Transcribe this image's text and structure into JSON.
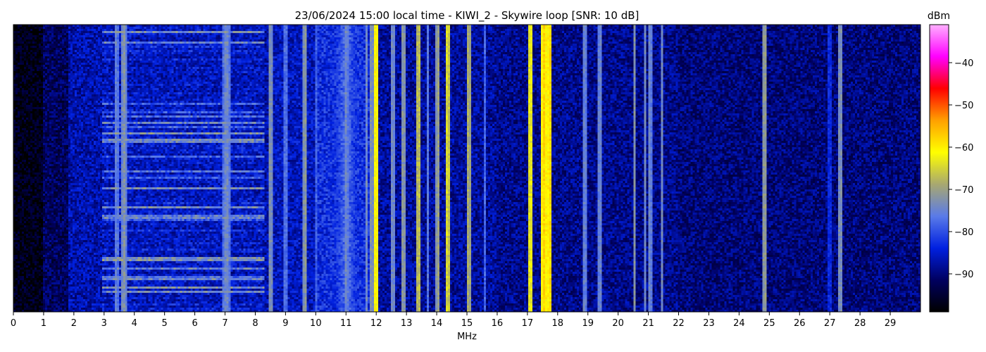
{
  "chart_data": {
    "type": "heatmap",
    "title": "23/06/2024 15:00 local time - KIWI_2 - Skywire loop [SNR: 10 dB]",
    "xlabel": "MHz",
    "ylabel": "",
    "xlim": [
      0,
      30
    ],
    "x_ticks": [
      0,
      1,
      2,
      3,
      4,
      5,
      6,
      7,
      8,
      9,
      10,
      11,
      12,
      13,
      14,
      15,
      16,
      17,
      18,
      19,
      20,
      21,
      22,
      23,
      24,
      25,
      26,
      27,
      28,
      29
    ],
    "colorbar": {
      "label": "dBm",
      "range": [
        -99,
        -31
      ],
      "ticks": [
        -40,
        -50,
        -60,
        -70,
        -80,
        -90
      ],
      "colors": [
        "#000000",
        "#000060",
        "#0020e0",
        "#5a7be8",
        "#a8a870",
        "#ffff00",
        "#ffa000",
        "#ff0000",
        "#ff00ff",
        "#ffb0ff"
      ]
    },
    "noise_floor_dbm": -93,
    "band_regions": [
      {
        "start": 0.0,
        "end": 1.0,
        "level": -97
      },
      {
        "start": 1.0,
        "end": 1.8,
        "level": -92
      },
      {
        "start": 1.8,
        "end": 8.5,
        "level": -87
      },
      {
        "start": 8.5,
        "end": 10.0,
        "level": -86
      },
      {
        "start": 10.0,
        "end": 11.9,
        "level": -83
      },
      {
        "start": 11.9,
        "end": 16.0,
        "level": -88
      },
      {
        "start": 16.0,
        "end": 22.0,
        "level": -89
      },
      {
        "start": 22.0,
        "end": 30.0,
        "level": -90
      }
    ],
    "broadcast_bands": [
      {
        "start": 2.9,
        "end": 8.3,
        "level": -72
      }
    ],
    "diffuse_hump": {
      "center": 11.0,
      "width": 0.35,
      "level": -78
    },
    "signals": [
      {
        "freq": 3.4,
        "width": 0.05,
        "level": -75
      },
      {
        "freq": 3.65,
        "width": 0.08,
        "level": -72
      },
      {
        "freq": 7.05,
        "width": 0.12,
        "level": -73
      },
      {
        "freq": 8.5,
        "width": 0.03,
        "level": -72
      },
      {
        "freq": 9.0,
        "width": 0.02,
        "level": -76
      },
      {
        "freq": 9.65,
        "width": 0.03,
        "level": -71
      },
      {
        "freq": 10.0,
        "width": 0.02,
        "level": -78
      },
      {
        "freq": 11.0,
        "width": 0.03,
        "level": -74
      },
      {
        "freq": 11.7,
        "width": 0.02,
        "level": -74
      },
      {
        "freq": 11.85,
        "width": 0.02,
        "level": -72
      },
      {
        "freq": 12.0,
        "width": 0.03,
        "level": -60
      },
      {
        "freq": 12.55,
        "width": 0.02,
        "level": -73
      },
      {
        "freq": 12.9,
        "width": 0.03,
        "level": -71
      },
      {
        "freq": 13.4,
        "width": 0.03,
        "level": -66
      },
      {
        "freq": 13.7,
        "width": 0.02,
        "level": -76
      },
      {
        "freq": 14.05,
        "width": 0.03,
        "level": -70
      },
      {
        "freq": 14.35,
        "width": 0.03,
        "level": -64
      },
      {
        "freq": 15.05,
        "width": 0.03,
        "level": -68
      },
      {
        "freq": 15.6,
        "width": 0.02,
        "level": -78
      },
      {
        "freq": 17.1,
        "width": 0.03,
        "level": -62
      },
      {
        "freq": 17.55,
        "width": 0.05,
        "level": -58
      },
      {
        "freq": 17.65,
        "width": 0.04,
        "level": -60
      },
      {
        "freq": 17.75,
        "width": 0.04,
        "level": -58
      },
      {
        "freq": 18.9,
        "width": 0.02,
        "level": -74
      },
      {
        "freq": 19.4,
        "width": 0.02,
        "level": -74
      },
      {
        "freq": 20.55,
        "width": 0.02,
        "level": -72
      },
      {
        "freq": 20.9,
        "width": 0.02,
        "level": -74
      },
      {
        "freq": 21.05,
        "width": 0.02,
        "level": -74
      },
      {
        "freq": 21.45,
        "width": 0.02,
        "level": -74
      },
      {
        "freq": 24.85,
        "width": 0.03,
        "level": -70
      },
      {
        "freq": 27.0,
        "width": 0.02,
        "level": -82
      },
      {
        "freq": 27.35,
        "width": 0.03,
        "level": -72
      }
    ]
  }
}
